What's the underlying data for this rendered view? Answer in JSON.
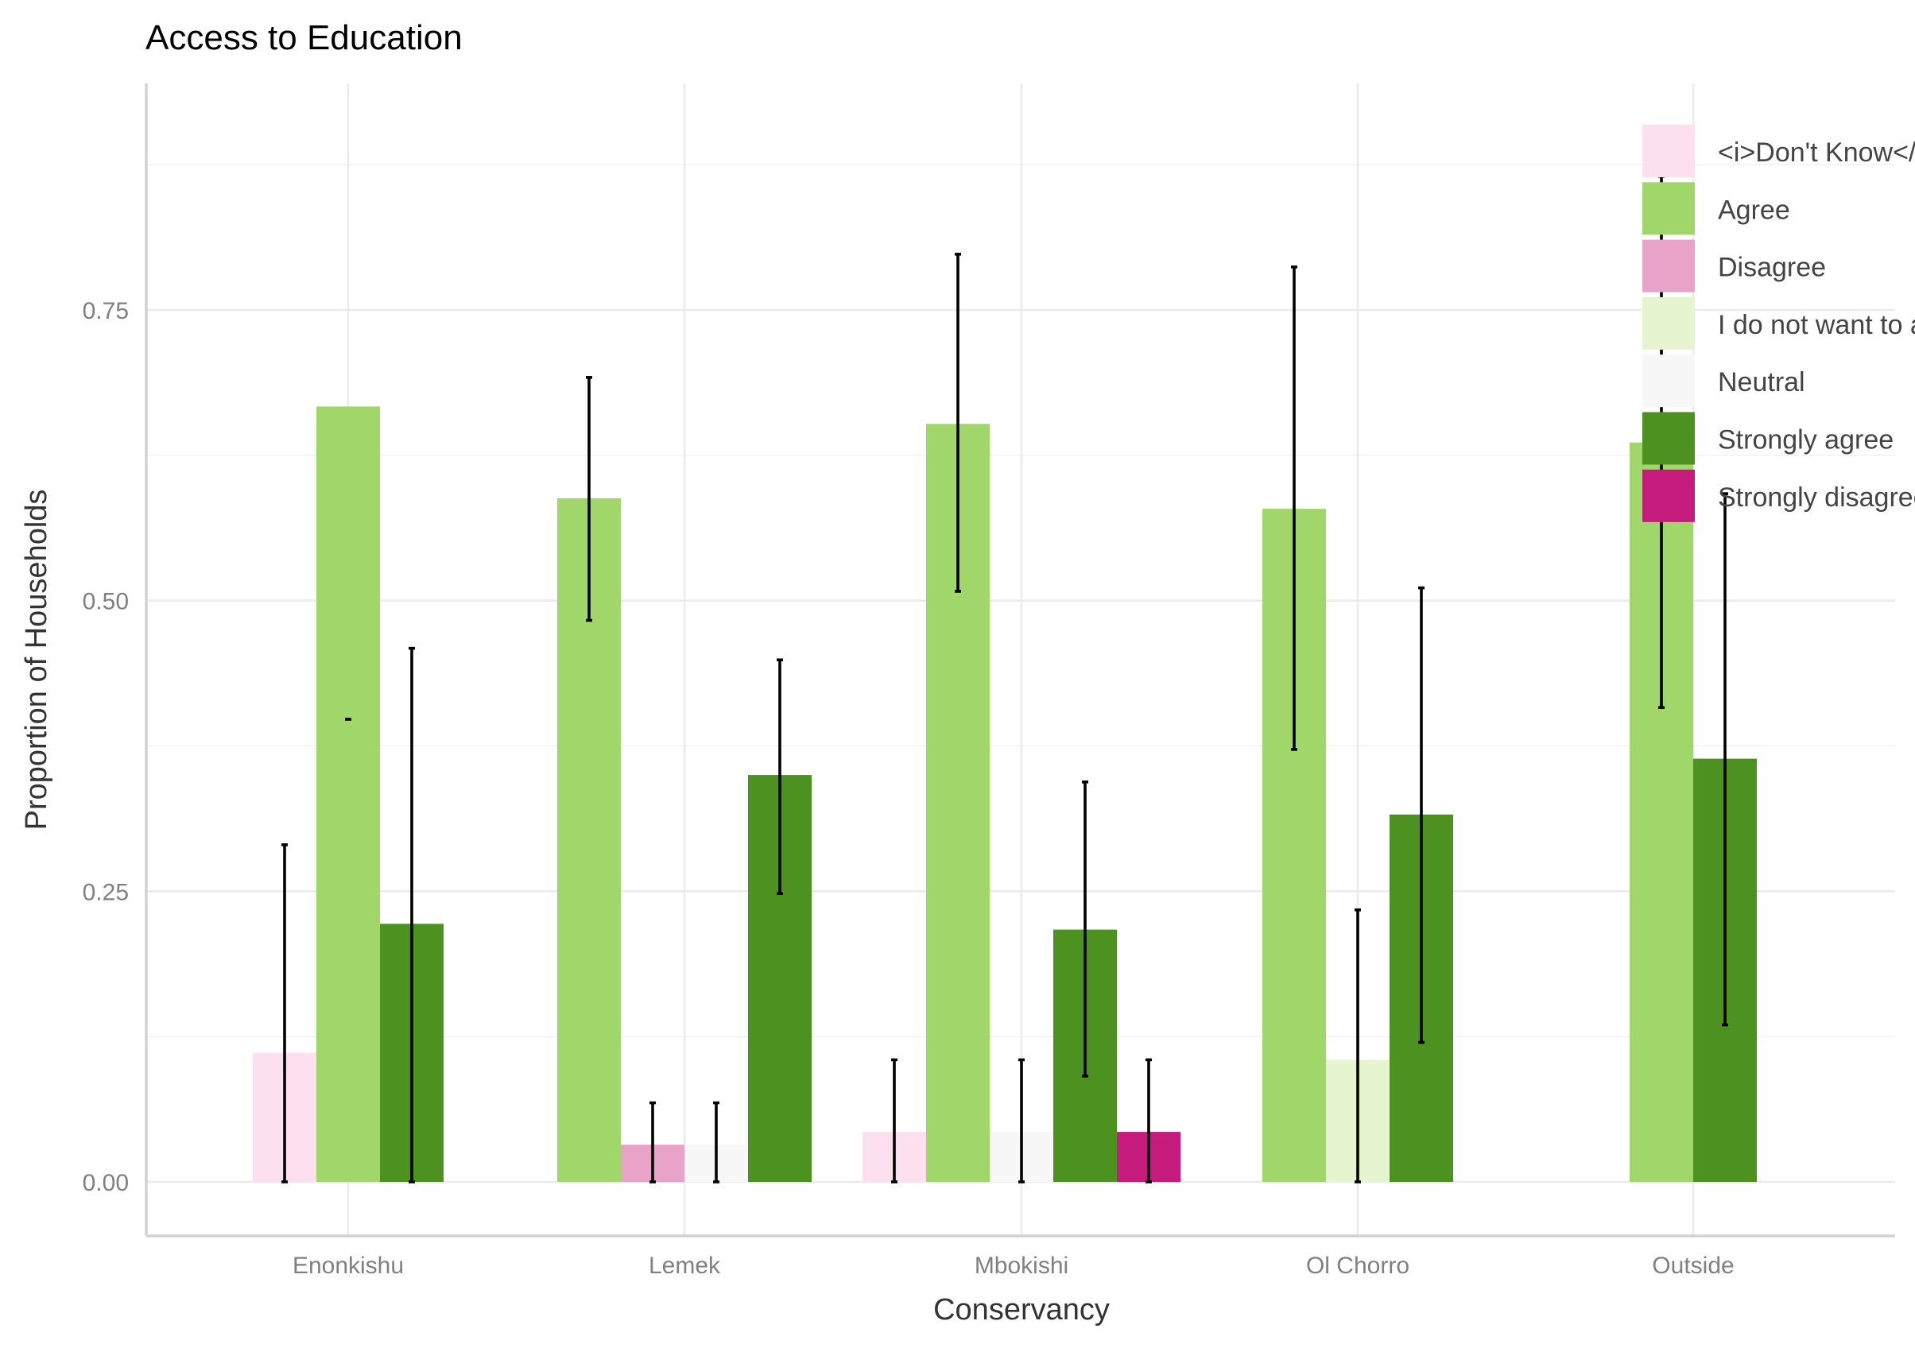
{
  "chart_data": {
    "type": "bar",
    "title": "Access to Education",
    "xlabel": "Conservancy",
    "ylabel": "Proportion of Households",
    "ylim": [
      -0.07,
      0.95
    ],
    "yticks": [
      0.0,
      0.25,
      0.5,
      0.75
    ],
    "ytick_labels": [
      "0.00",
      "0.25",
      "0.50",
      "0.75"
    ],
    "grid": true,
    "legend_position": "top-right",
    "categories": [
      "Enonkishu",
      "Lemek",
      "Mbokishi",
      "Ol Chorro",
      "Outside"
    ],
    "series": [
      {
        "name": "<i>Don't Know</i>",
        "color": "#fde0ef",
        "values": [
          0.111,
          null,
          0.043,
          null,
          null
        ],
        "err_low": [
          0.0,
          null,
          0.0,
          null,
          null
        ],
        "err_high": [
          0.29,
          null,
          0.105,
          null,
          null
        ]
      },
      {
        "name": "Agree",
        "color": "#a1d76a",
        "values": [
          0.667,
          0.588,
          0.652,
          0.579,
          0.636
        ],
        "err_low": [
          0.398,
          0.483,
          0.508,
          0.372,
          0.408
        ],
        "err_high": [
          0.398,
          0.692,
          0.798,
          0.787,
          0.865
        ]
      },
      {
        "name": "Disagree",
        "color": "#e9a3c9",
        "values": [
          null,
          0.032,
          null,
          null,
          null
        ],
        "err_low": [
          null,
          0.0,
          null,
          null,
          null
        ],
        "err_high": [
          null,
          0.068,
          null,
          null,
          null
        ]
      },
      {
        "name": "I do not want to answer",
        "color": "#e6f5d0",
        "values": [
          null,
          null,
          null,
          0.105,
          null
        ],
        "err_low": [
          null,
          null,
          null,
          0.0,
          null
        ],
        "err_high": [
          null,
          null,
          null,
          0.234,
          null
        ]
      },
      {
        "name": "Neutral",
        "color": "#f7f7f7",
        "values": [
          null,
          0.032,
          0.043,
          null,
          null
        ],
        "err_low": [
          null,
          0.0,
          0.0,
          null,
          null
        ],
        "err_high": [
          null,
          0.068,
          0.105,
          null,
          null
        ]
      },
      {
        "name": "Strongly agree",
        "color": "#4d9221",
        "values": [
          0.222,
          0.35,
          0.217,
          0.316,
          0.364
        ],
        "err_low": [
          0.0,
          0.248,
          0.091,
          0.12,
          0.135
        ],
        "err_high": [
          0.459,
          0.449,
          0.344,
          0.511,
          0.592
        ]
      },
      {
        "name": "Strongly disagree",
        "color": "#c51b7d",
        "values": [
          null,
          null,
          0.043,
          null,
          null
        ],
        "err_low": [
          null,
          null,
          0.0,
          null,
          null
        ],
        "err_high": [
          null,
          null,
          0.105,
          null,
          null
        ]
      }
    ],
    "bar_slots": [
      [
        0,
        1,
        5
      ],
      [
        1,
        2,
        4,
        5
      ],
      [
        0,
        1,
        4,
        5,
        6
      ],
      [
        1,
        3,
        5
      ],
      [
        1,
        5
      ]
    ]
  }
}
